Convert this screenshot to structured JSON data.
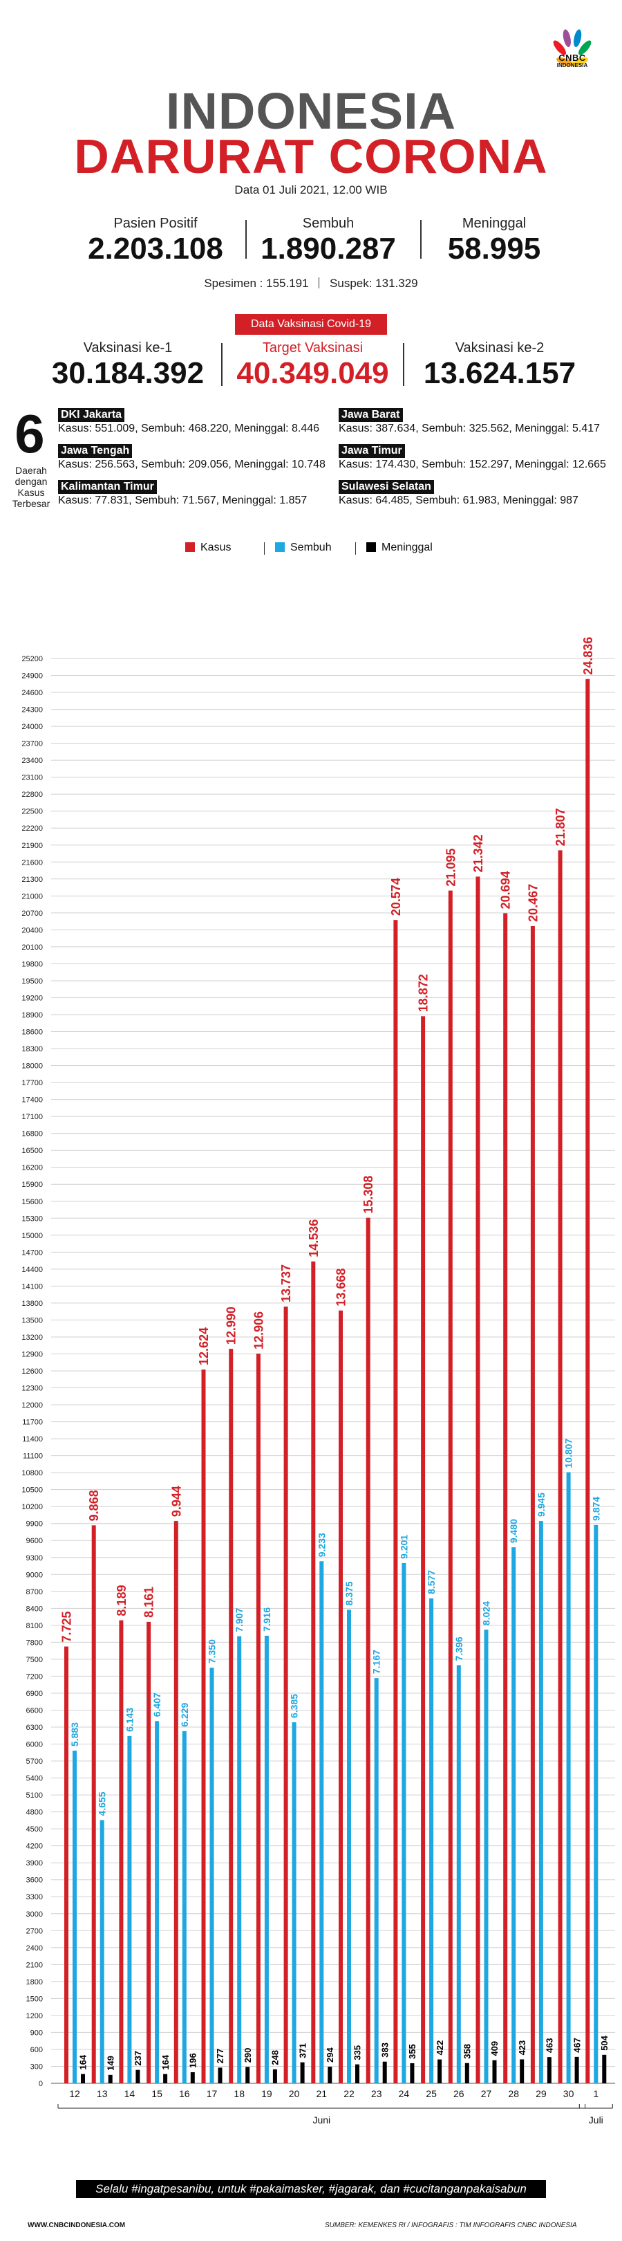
{
  "brand": {
    "logo_text": "CNBC",
    "logo_sub": "INDONESIA"
  },
  "header": {
    "title_line1": "INDONESIA",
    "title_line2": "DARURAT CORONA",
    "date": "Data 01 Juli 2021, 12.00 WIB"
  },
  "stats": {
    "positive_label": "Pasien Positif",
    "positive_value": "2.203.108",
    "recovered_label": "Sembuh",
    "recovered_value": "1.890.287",
    "deaths_label": "Meninggal",
    "deaths_value": "58.995",
    "specimen": "Spesimen : 155.191",
    "suspect": "Suspek: 131.329"
  },
  "vaccination": {
    "badge": "Data Vaksinasi Covid-19",
    "dose1_label": "Vaksinasi ke-1",
    "dose1_value": "30.184.392",
    "target_label": "Target Vaksinasi",
    "target_value": "40.349.049",
    "dose2_label": "Vaksinasi ke-2",
    "dose2_value": "13.624.157"
  },
  "regions": {
    "count": "6",
    "count_caption_1": "Daerah",
    "count_caption_2": "dengan",
    "count_caption_3": "Kasus",
    "count_caption_4": "Terbesar",
    "items": [
      {
        "name": "DKI Jakarta",
        "stats": "Kasus: 551.009, Sembuh: 468.220, Meninggal: 8.446"
      },
      {
        "name": "Jawa Barat",
        "stats": "Kasus: 387.634, Sembuh: 325.562, Meninggal: 5.417"
      },
      {
        "name": "Jawa Tengah",
        "stats": "Kasus: 256.563, Sembuh: 209.056, Meninggal: 10.748"
      },
      {
        "name": "Jawa Timur",
        "stats": "Kasus: 174.430, Sembuh: 152.297, Meninggal: 12.665"
      },
      {
        "name": "Kalimantan Timur",
        "stats": "Kasus: 77.831, Sembuh: 71.567, Meninggal: 1.857"
      },
      {
        "name": "Sulawesi Selatan",
        "stats": "Kasus: 64.485, Sembuh: 61.983, Meninggal: 987"
      }
    ]
  },
  "legend": {
    "kasus": "Kasus",
    "sembuh": "Sembuh",
    "meninggal": "Meninggal"
  },
  "colors": {
    "kasus": "#d32027",
    "sembuh": "#1ea7e1",
    "meninggal": "#000000",
    "accent": "#d32027"
  },
  "chart_data": {
    "type": "bar",
    "categories": [
      "12",
      "13",
      "14",
      "15",
      "16",
      "17",
      "18",
      "19",
      "20",
      "21",
      "22",
      "23",
      "24",
      "25",
      "26",
      "27",
      "28",
      "29",
      "30",
      "1"
    ],
    "group_labels": [
      {
        "label": "Juni",
        "from": 0,
        "to": 18
      },
      {
        "label": "Juli",
        "from": 19,
        "to": 19
      }
    ],
    "series": [
      {
        "name": "Kasus",
        "color": "#d32027",
        "values": [
          7725,
          9868,
          8189,
          8161,
          9944,
          12624,
          12990,
          12906,
          13737,
          14536,
          13668,
          15308,
          20574,
          18872,
          21095,
          21342,
          20694,
          20467,
          21807,
          24836
        ],
        "labels": [
          "7.725",
          "9.868",
          "8.189",
          "8.161",
          "9.944",
          "12.624",
          "12.990",
          "12.906",
          "13.737",
          "14.536",
          "13.668",
          "15.308",
          "20.574",
          "18.872",
          "21.095",
          "21.342",
          "20.694",
          "20.467",
          "21.807",
          "24.836"
        ]
      },
      {
        "name": "Sembuh",
        "color": "#1ea7e1",
        "values": [
          5883,
          4655,
          6143,
          6407,
          6229,
          7350,
          7907,
          7916,
          6385,
          9233,
          8375,
          7167,
          9201,
          8577,
          7396,
          8024,
          9480,
          9945,
          10807,
          9874
        ],
        "labels": [
          "5.883",
          "4.655",
          "6.143",
          "6.407",
          "6.229",
          "7.350",
          "7.907",
          "7.916",
          "6.385",
          "9.233",
          "8.375",
          "7.167",
          "9.201",
          "8.577",
          "7.396",
          "8.024",
          "9.480",
          "9.945",
          "10.807",
          "9.874"
        ]
      },
      {
        "name": "Meninggal",
        "color": "#000000",
        "values": [
          164,
          149,
          237,
          164,
          196,
          277,
          290,
          248,
          371,
          294,
          335,
          383,
          355,
          422,
          358,
          409,
          423,
          463,
          467,
          504
        ],
        "labels": [
          "164",
          "149",
          "237",
          "164",
          "196",
          "277",
          "290",
          "248",
          "371",
          "294",
          "335",
          "383",
          "355",
          "422",
          "358",
          "409",
          "423",
          "463",
          "467",
          "504"
        ]
      }
    ],
    "ylim": [
      0,
      25200
    ],
    "ytick_step": 300,
    "grid": true,
    "legend_position": "top-center"
  },
  "footer": {
    "slogan": "Selalu #ingatpesanibu, untuk #pakaimasker, #jagarak, dan #cucitanganpakaisabun",
    "website": "WWW.CNBCINDONESIA.COM",
    "source": "SUMBER: KEMENKES RI / INFOGRAFIS : TIM INFOGRAFIS CNBC INDONESIA"
  }
}
